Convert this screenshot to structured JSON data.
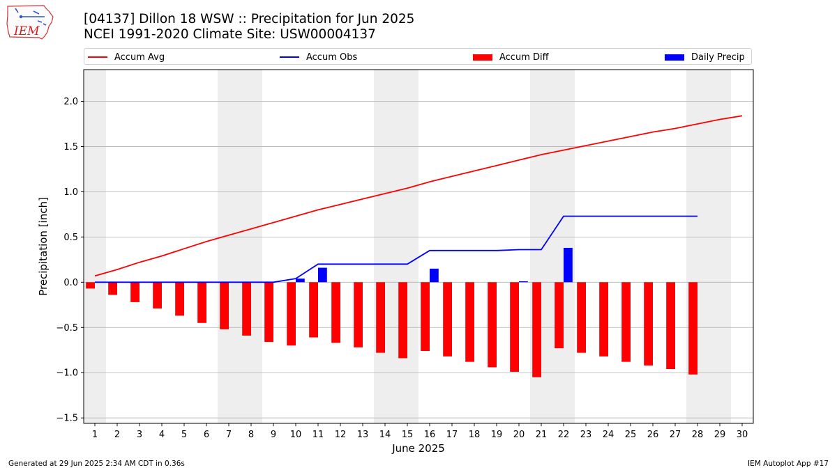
{
  "header": {
    "title_line1": "[04137] Dillon 18 WSW :: Precipitation for Jun 2025",
    "title_line2": "NCEI 1991-2020 Climate Site: USW00004137",
    "logo_text": "IEM"
  },
  "legend": {
    "accum_avg": "Accum Avg",
    "accum_obs": "Accum Obs",
    "accum_diff": "Accum Diff",
    "daily_precip": "Daily Precip"
  },
  "footer": {
    "left": "Generated at 29 Jun 2025 2:34 AM CDT in 0.36s",
    "right": "IEM Autoplot App #17"
  },
  "colors": {
    "avg": "#ff0000",
    "obs": "#0000ff",
    "diff": "#ff0000",
    "precip": "#0000ff",
    "weekend_band": "#eeeeee",
    "grid": "#b0b0b0"
  },
  "chart_data": {
    "type": "bar",
    "xlabel": "June 2025",
    "ylabel": "Precipitation [inch]",
    "xlim": [
      0.5,
      30.5
    ],
    "ylim": [
      -1.56,
      2.35
    ],
    "yticks": [
      -1.5,
      -1.0,
      -0.5,
      0.0,
      0.5,
      1.0,
      1.5,
      2.0
    ],
    "ytick_labels": [
      "−1.5",
      "−1.0",
      "−0.5",
      "0.0",
      "0.5",
      "1.0",
      "1.5",
      "2.0"
    ],
    "grid": "horizontal",
    "legend_position": "top",
    "weekend_bands": [
      [
        0.5,
        1.5
      ],
      [
        6.5,
        8.5
      ],
      [
        13.5,
        15.5
      ],
      [
        20.5,
        22.5
      ],
      [
        27.5,
        29.5
      ]
    ],
    "days": [
      1,
      2,
      3,
      4,
      5,
      6,
      7,
      8,
      9,
      10,
      11,
      12,
      13,
      14,
      15,
      16,
      17,
      18,
      19,
      20,
      21,
      22,
      23,
      24,
      25,
      26,
      27,
      28,
      29,
      30
    ],
    "series": [
      {
        "name": "Accum Avg",
        "type": "line",
        "x": [
          1,
          2,
          3,
          4,
          5,
          6,
          7,
          8,
          9,
          10,
          11,
          12,
          13,
          14,
          15,
          16,
          17,
          18,
          19,
          20,
          21,
          22,
          23,
          24,
          25,
          26,
          27,
          28,
          29,
          30
        ],
        "values": [
          0.07,
          0.14,
          0.22,
          0.29,
          0.37,
          0.45,
          0.52,
          0.59,
          0.66,
          0.73,
          0.8,
          0.86,
          0.92,
          0.98,
          1.04,
          1.11,
          1.17,
          1.23,
          1.29,
          1.35,
          1.41,
          1.46,
          1.51,
          1.56,
          1.61,
          1.66,
          1.7,
          1.75,
          1.8,
          1.84
        ]
      },
      {
        "name": "Accum Obs",
        "type": "line",
        "x": [
          1,
          2,
          3,
          4,
          5,
          6,
          7,
          8,
          9,
          10,
          11,
          12,
          13,
          14,
          15,
          16,
          17,
          18,
          19,
          20,
          21,
          22,
          23,
          24,
          25,
          26,
          27,
          28
        ],
        "values": [
          0.0,
          0.0,
          0.0,
          0.0,
          0.0,
          0.0,
          0.0,
          0.0,
          0.0,
          0.04,
          0.2,
          0.2,
          0.2,
          0.2,
          0.2,
          0.35,
          0.35,
          0.35,
          0.35,
          0.36,
          0.36,
          0.73,
          0.73,
          0.73,
          0.73,
          0.73,
          0.73,
          0.73
        ]
      },
      {
        "name": "Accum Diff",
        "type": "bar",
        "x": [
          1,
          2,
          3,
          4,
          5,
          6,
          7,
          8,
          9,
          10,
          11,
          12,
          13,
          14,
          15,
          16,
          17,
          18,
          19,
          20,
          21,
          22,
          23,
          24,
          25,
          26,
          27,
          28
        ],
        "values": [
          -0.07,
          -0.14,
          -0.22,
          -0.29,
          -0.37,
          -0.45,
          -0.52,
          -0.59,
          -0.66,
          -0.7,
          -0.61,
          -0.67,
          -0.72,
          -0.78,
          -0.84,
          -0.76,
          -0.82,
          -0.88,
          -0.94,
          -0.99,
          -1.05,
          -0.73,
          -0.78,
          -0.82,
          -0.88,
          -0.92,
          -0.96,
          -1.02
        ]
      },
      {
        "name": "Daily Precip",
        "type": "bar",
        "x": [
          10,
          11,
          16,
          20,
          22
        ],
        "values": [
          0.04,
          0.16,
          0.15,
          0.01,
          0.38
        ]
      }
    ]
  }
}
